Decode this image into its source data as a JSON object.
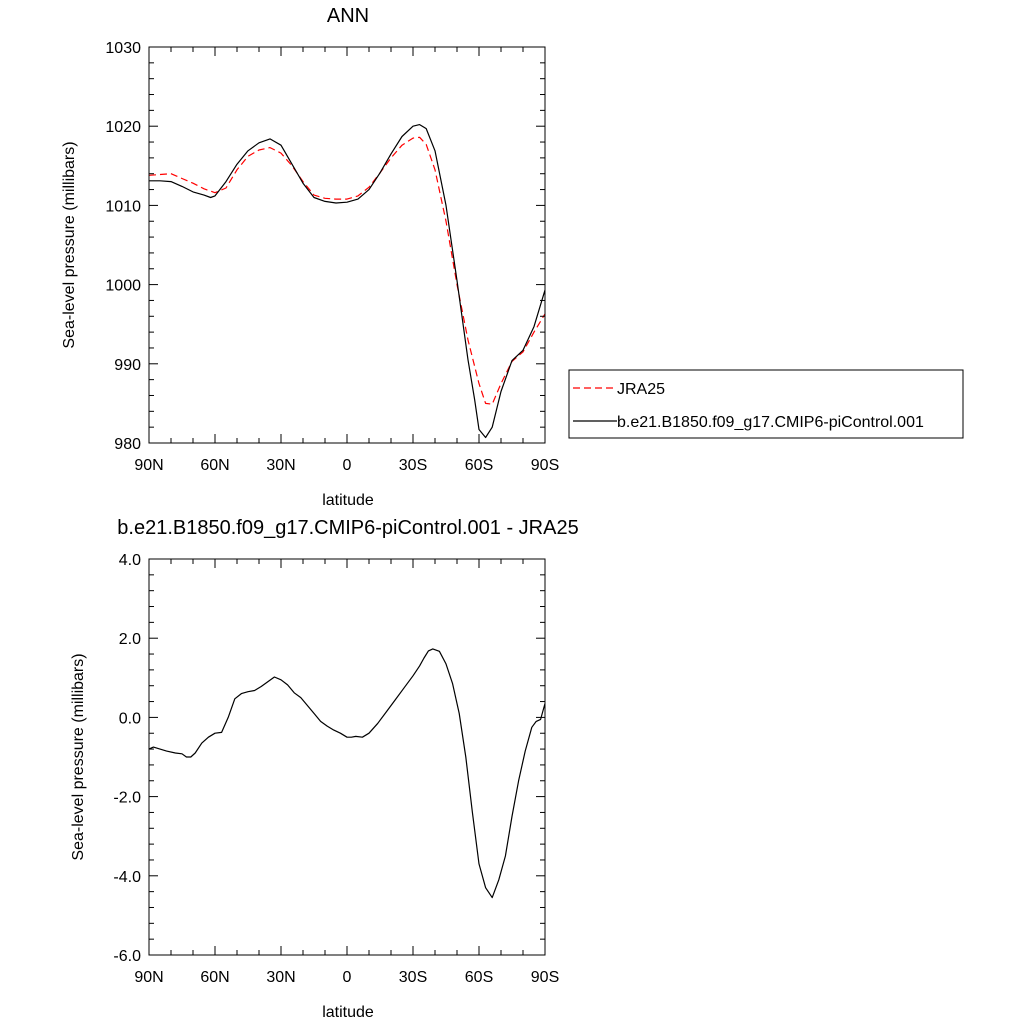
{
  "chart_data": [
    {
      "type": "line",
      "title": "ANN",
      "xlabel": "latitude",
      "ylabel": "Sea-level pressure (millibars)",
      "x_tick_labels": [
        "90N",
        "60N",
        "30N",
        "0",
        "30S",
        "60S",
        "90S"
      ],
      "x_ticks": [
        90,
        60,
        30,
        0,
        -30,
        -60,
        -90
      ],
      "xlim": [
        90,
        -90
      ],
      "ylim": [
        980,
        1030
      ],
      "y_ticks": [
        980,
        990,
        1000,
        1010,
        1020,
        1030
      ],
      "y_tick_labels": [
        "980",
        "990",
        "1000",
        "1010",
        "1020",
        "1030"
      ],
      "legend_position": "right",
      "series": [
        {
          "name": "JRA25",
          "color": "#ff0000",
          "dash": "dashed",
          "x": [
            90,
            85,
            80,
            75,
            70,
            65,
            60,
            55,
            50,
            45,
            40,
            35,
            30,
            25,
            20,
            15,
            10,
            5,
            0,
            -5,
            -10,
            -15,
            -20,
            -25,
            -30,
            -33,
            -36,
            -40,
            -45,
            -50,
            -55,
            -60,
            -63,
            -66,
            -70,
            -75,
            -80,
            -85,
            -90
          ],
          "y": [
            1013.8,
            1013.9,
            1014.0,
            1013.4,
            1012.8,
            1012.1,
            1011.6,
            1012.2,
            1014.5,
            1016.2,
            1017.0,
            1017.3,
            1016.6,
            1015.0,
            1013.0,
            1011.3,
            1010.9,
            1010.8,
            1010.8,
            1011.2,
            1012.3,
            1014.1,
            1016.0,
            1017.6,
            1018.5,
            1018.6,
            1017.7,
            1014.5,
            1008.0,
            1000.0,
            993.0,
            987.5,
            985.0,
            984.9,
            987.5,
            990.3,
            991.5,
            994.0,
            996.3
          ]
        },
        {
          "name": "b.e21.B1850.f09_g17.CMIP6-piControl.001",
          "color": "#000000",
          "dash": "solid",
          "x": [
            90,
            85,
            80,
            75,
            70,
            65,
            62,
            60,
            55,
            50,
            45,
            40,
            35,
            30,
            25,
            20,
            15,
            10,
            5,
            0,
            -5,
            -10,
            -15,
            -20,
            -25,
            -30,
            -33,
            -36,
            -40,
            -45,
            -50,
            -55,
            -58,
            -60,
            -63,
            -66,
            -70,
            -75,
            -80,
            -85,
            -90
          ],
          "y": [
            1013.1,
            1013.1,
            1013.0,
            1012.4,
            1011.7,
            1011.3,
            1011.0,
            1011.2,
            1013.0,
            1015.2,
            1016.9,
            1017.9,
            1018.4,
            1017.6,
            1015.2,
            1012.8,
            1011.0,
            1010.5,
            1010.3,
            1010.4,
            1010.8,
            1012.0,
            1014.1,
            1016.5,
            1018.7,
            1020.0,
            1020.2,
            1019.7,
            1016.9,
            1010.0,
            1000.5,
            990.5,
            985.5,
            981.7,
            980.7,
            982.0,
            986.5,
            990.4,
            991.7,
            994.7,
            999.3
          ]
        }
      ]
    },
    {
      "type": "line",
      "title": "b.e21.B1850.f09_g17.CMIP6-piControl.001 - JRA25",
      "xlabel": "latitude",
      "ylabel": "Sea-level pressure (millibars)",
      "x_tick_labels": [
        "90N",
        "60N",
        "30N",
        "0",
        "30S",
        "60S",
        "90S"
      ],
      "x_ticks": [
        90,
        60,
        30,
        0,
        -30,
        -60,
        -90
      ],
      "xlim": [
        90,
        -90
      ],
      "ylim": [
        -6,
        4
      ],
      "y_ticks": [
        -6,
        -4,
        -2,
        0,
        2,
        4
      ],
      "y_tick_labels": [
        "-6.0",
        "-4.0",
        "-2.0",
        "0.0",
        "2.0",
        "4.0"
      ],
      "series": [
        {
          "color": "#000000",
          "dash": "solid",
          "x": [
            90,
            88,
            85,
            82,
            78,
            75,
            73,
            71,
            69,
            66,
            63,
            60,
            57,
            54,
            51,
            48,
            45,
            42,
            39,
            36,
            33,
            30,
            27,
            24,
            21,
            18,
            15,
            12,
            9,
            6,
            3,
            0,
            -2,
            -4,
            -7,
            -10,
            -14,
            -18,
            -22,
            -26,
            -30,
            -33,
            -35,
            -37,
            -39,
            -42,
            -45,
            -48,
            -51,
            -54,
            -57,
            -60,
            -63,
            -66,
            -69,
            -72,
            -75,
            -78,
            -81,
            -84,
            -86,
            -88,
            -90
          ],
          "y": [
            -0.8,
            -0.75,
            -0.8,
            -0.85,
            -0.9,
            -0.92,
            -1.0,
            -1.0,
            -0.9,
            -0.65,
            -0.5,
            -0.4,
            -0.38,
            0.0,
            0.47,
            0.6,
            0.65,
            0.68,
            0.78,
            0.9,
            1.02,
            0.95,
            0.82,
            0.62,
            0.5,
            0.3,
            0.1,
            -0.1,
            -0.22,
            -0.32,
            -0.4,
            -0.5,
            -0.5,
            -0.48,
            -0.5,
            -0.4,
            -0.15,
            0.15,
            0.45,
            0.75,
            1.05,
            1.3,
            1.5,
            1.68,
            1.73,
            1.67,
            1.35,
            0.85,
            0.1,
            -1.0,
            -2.4,
            -3.7,
            -4.3,
            -4.55,
            -4.1,
            -3.5,
            -2.5,
            -1.6,
            -0.85,
            -0.25,
            -0.1,
            -0.05,
            0.35
          ]
        }
      ]
    }
  ]
}
